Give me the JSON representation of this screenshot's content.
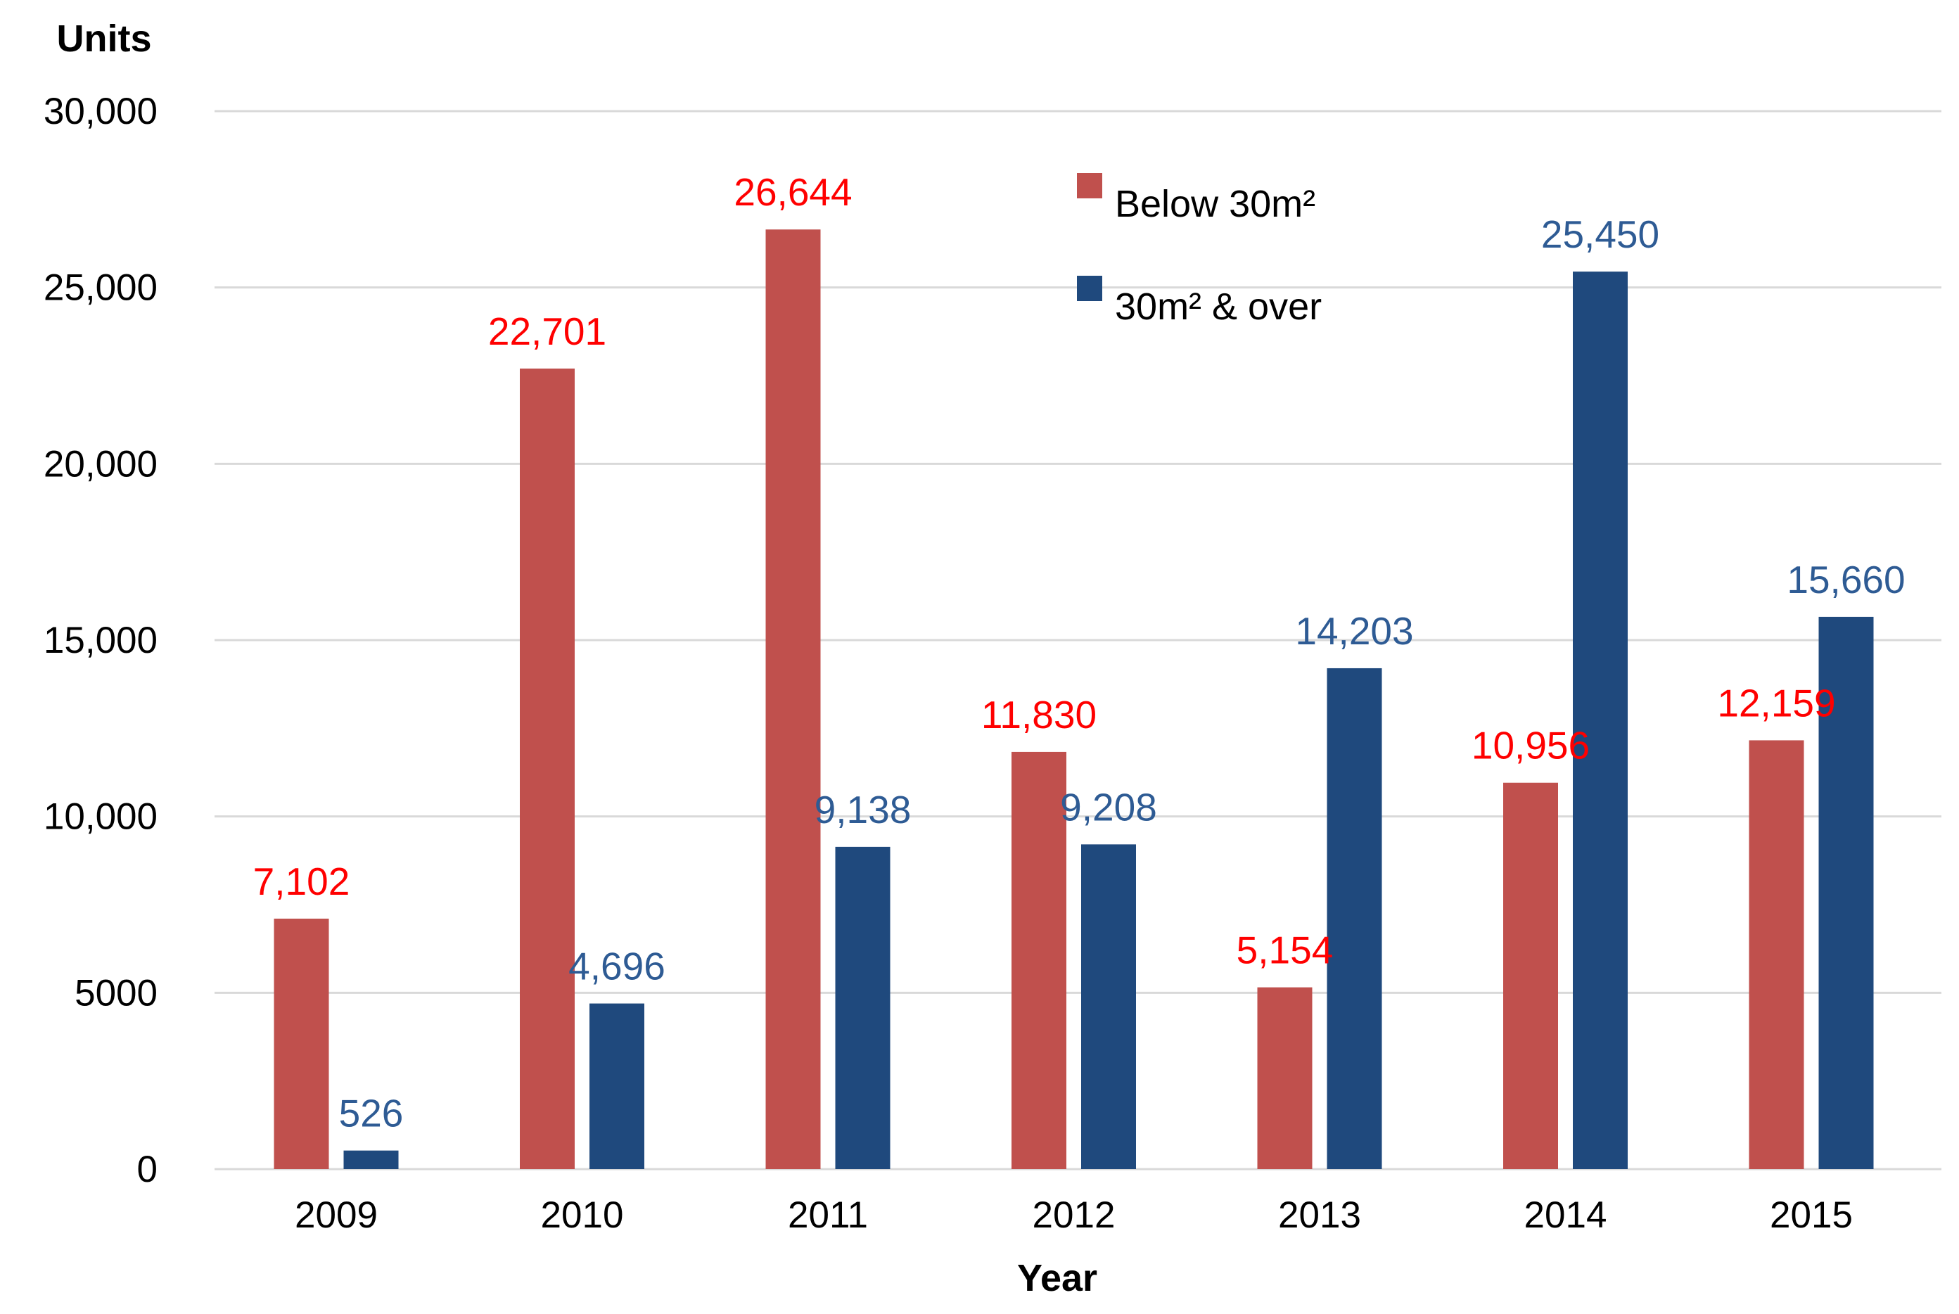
{
  "chart_data": {
    "type": "bar",
    "title": "",
    "xlabel": "Year",
    "ylabel": "Units",
    "ylim": [
      0,
      30000
    ],
    "yticks": [
      0,
      5000,
      10000,
      15000,
      20000,
      25000,
      30000
    ],
    "ytick_labels": [
      "0",
      "5000",
      "10,000",
      "15,000",
      "20,000",
      "25,000",
      "30,000"
    ],
    "grid": true,
    "legend_position": "top-center",
    "categories": [
      "2009",
      "2010",
      "2011",
      "2012",
      "2013",
      "2014",
      "2015"
    ],
    "series": [
      {
        "name": "Below 30m²",
        "color": "#c0504d",
        "label_color": "#ff0000",
        "values": [
          7102,
          22701,
          26644,
          11830,
          5154,
          10956,
          12159
        ],
        "labels": [
          "7,102",
          "22,701",
          "26,644",
          "11,830",
          "5,154",
          "10,956",
          "12,159"
        ]
      },
      {
        "name": "30m² & over",
        "color": "#1f497d",
        "label_color": "#2e5b94",
        "values": [
          526,
          4696,
          9138,
          9208,
          14203,
          25450,
          15660
        ],
        "labels": [
          "526",
          "4,696",
          "9,138",
          "9,208",
          "14,203",
          "25,450",
          "15,660"
        ]
      }
    ]
  }
}
